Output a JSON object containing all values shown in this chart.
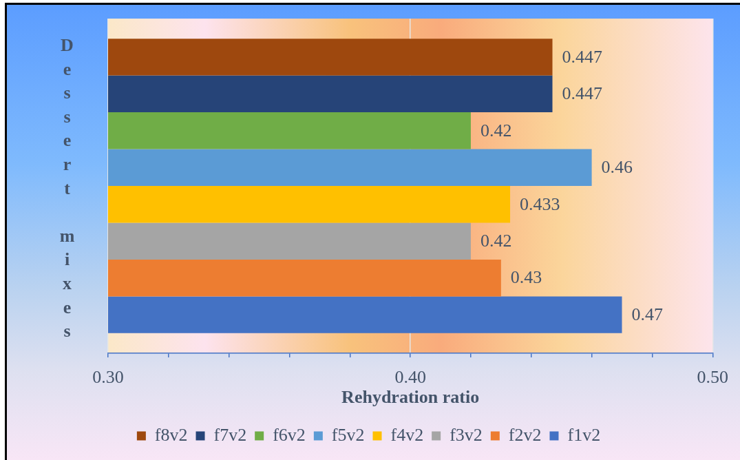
{
  "chart_data": {
    "type": "bar",
    "orientation": "horizontal",
    "categories": [
      null
    ],
    "series": [
      {
        "name": "f8v2",
        "color": "#9e480e",
        "values": [
          0.447
        ]
      },
      {
        "name": "f7v2",
        "color": "#264478",
        "values": [
          0.447
        ]
      },
      {
        "name": "f6v2",
        "color": "#70ad47",
        "values": [
          0.42
        ]
      },
      {
        "name": "f5v2",
        "color": "#5b9bd5",
        "values": [
          0.46
        ]
      },
      {
        "name": "f4v2",
        "color": "#ffc000",
        "values": [
          0.433
        ]
      },
      {
        "name": "f3v2",
        "color": "#a5a5a5",
        "values": [
          0.42
        ]
      },
      {
        "name": "f2v2",
        "color": "#ed7d31",
        "values": [
          0.43
        ]
      },
      {
        "name": "f1v2",
        "color": "#4472c4",
        "values": [
          0.47
        ]
      }
    ],
    "xlabel": "Rehydration ratio",
    "ylabel": "Dessert mixes",
    "xlim": [
      0.3,
      0.5
    ],
    "xticks": [
      {
        "value": 0.3,
        "label": "0.30"
      },
      {
        "value": 0.32,
        "label": null
      },
      {
        "value": 0.34,
        "label": null
      },
      {
        "value": 0.36,
        "label": null
      },
      {
        "value": 0.38,
        "label": null
      },
      {
        "value": 0.4,
        "label": "0.40"
      },
      {
        "value": 0.42,
        "label": null
      },
      {
        "value": 0.44,
        "label": null
      },
      {
        "value": 0.46,
        "label": null
      },
      {
        "value": 0.48,
        "label": null
      },
      {
        "value": 0.5,
        "label": "0.50"
      }
    ],
    "grid": "x",
    "legend": "bottom",
    "data_labels": true
  }
}
